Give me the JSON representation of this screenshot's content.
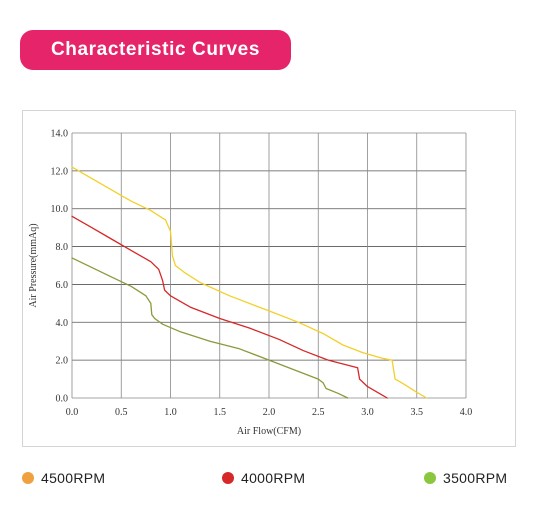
{
  "header": {
    "title": "Characteristic Curves"
  },
  "legend": {
    "items": [
      {
        "label": "4500RPM",
        "color": "#f0a040"
      },
      {
        "label": "4000RPM",
        "color": "#d62828"
      },
      {
        "label": "3500RPM",
        "color": "#8cc63f"
      }
    ]
  },
  "chart_data": {
    "type": "line",
    "xlabel": "Air Flow(CFM)",
    "ylabel": "Air Pressure(mmAq)",
    "xlim": [
      0,
      4.0
    ],
    "ylim": [
      0,
      14.0
    ],
    "xticks": [
      "0.0",
      "0.5",
      "1.0",
      "1.5",
      "2.0",
      "2.5",
      "3.0",
      "3.5",
      "4.0"
    ],
    "yticks": [
      "0.0",
      "2.0",
      "4.0",
      "6.0",
      "8.0",
      "10.0",
      "12.0",
      "14.0"
    ],
    "grid": true,
    "series": [
      {
        "name": "4500RPM",
        "color": "#f2d02a",
        "points": [
          [
            0.0,
            12.2
          ],
          [
            0.2,
            11.6
          ],
          [
            0.4,
            11.0
          ],
          [
            0.6,
            10.4
          ],
          [
            0.8,
            9.9
          ],
          [
            0.95,
            9.4
          ],
          [
            1.0,
            8.8
          ],
          [
            1.02,
            7.5
          ],
          [
            1.05,
            7.0
          ],
          [
            1.15,
            6.6
          ],
          [
            1.3,
            6.1
          ],
          [
            1.6,
            5.4
          ],
          [
            2.0,
            4.6
          ],
          [
            2.3,
            4.0
          ],
          [
            2.55,
            3.4
          ],
          [
            2.75,
            2.8
          ],
          [
            2.95,
            2.4
          ],
          [
            3.15,
            2.1
          ],
          [
            3.25,
            2.0
          ],
          [
            3.28,
            1.0
          ],
          [
            3.35,
            0.8
          ],
          [
            3.5,
            0.3
          ],
          [
            3.6,
            0.0
          ]
        ]
      },
      {
        "name": "4000RPM",
        "color": "#d62828",
        "points": [
          [
            0.0,
            9.6
          ],
          [
            0.2,
            9.0
          ],
          [
            0.4,
            8.4
          ],
          [
            0.6,
            7.8
          ],
          [
            0.8,
            7.2
          ],
          [
            0.88,
            6.8
          ],
          [
            0.92,
            6.2
          ],
          [
            0.94,
            5.7
          ],
          [
            1.0,
            5.4
          ],
          [
            1.2,
            4.8
          ],
          [
            1.5,
            4.2
          ],
          [
            1.8,
            3.7
          ],
          [
            2.1,
            3.1
          ],
          [
            2.35,
            2.5
          ],
          [
            2.6,
            2.0
          ],
          [
            2.9,
            1.6
          ],
          [
            2.92,
            1.0
          ],
          [
            3.0,
            0.6
          ],
          [
            3.1,
            0.3
          ],
          [
            3.2,
            0.0
          ]
        ]
      },
      {
        "name": "3500RPM",
        "color": "#8a9a3a",
        "points": [
          [
            0.0,
            7.4
          ],
          [
            0.2,
            6.9
          ],
          [
            0.4,
            6.4
          ],
          [
            0.6,
            5.9
          ],
          [
            0.75,
            5.4
          ],
          [
            0.8,
            5.0
          ],
          [
            0.81,
            4.4
          ],
          [
            0.84,
            4.2
          ],
          [
            0.92,
            3.9
          ],
          [
            1.1,
            3.5
          ],
          [
            1.4,
            3.0
          ],
          [
            1.7,
            2.6
          ],
          [
            2.0,
            2.0
          ],
          [
            2.3,
            1.4
          ],
          [
            2.5,
            1.0
          ],
          [
            2.55,
            0.8
          ],
          [
            2.58,
            0.5
          ],
          [
            2.7,
            0.25
          ],
          [
            2.8,
            0.0
          ]
        ]
      }
    ]
  }
}
